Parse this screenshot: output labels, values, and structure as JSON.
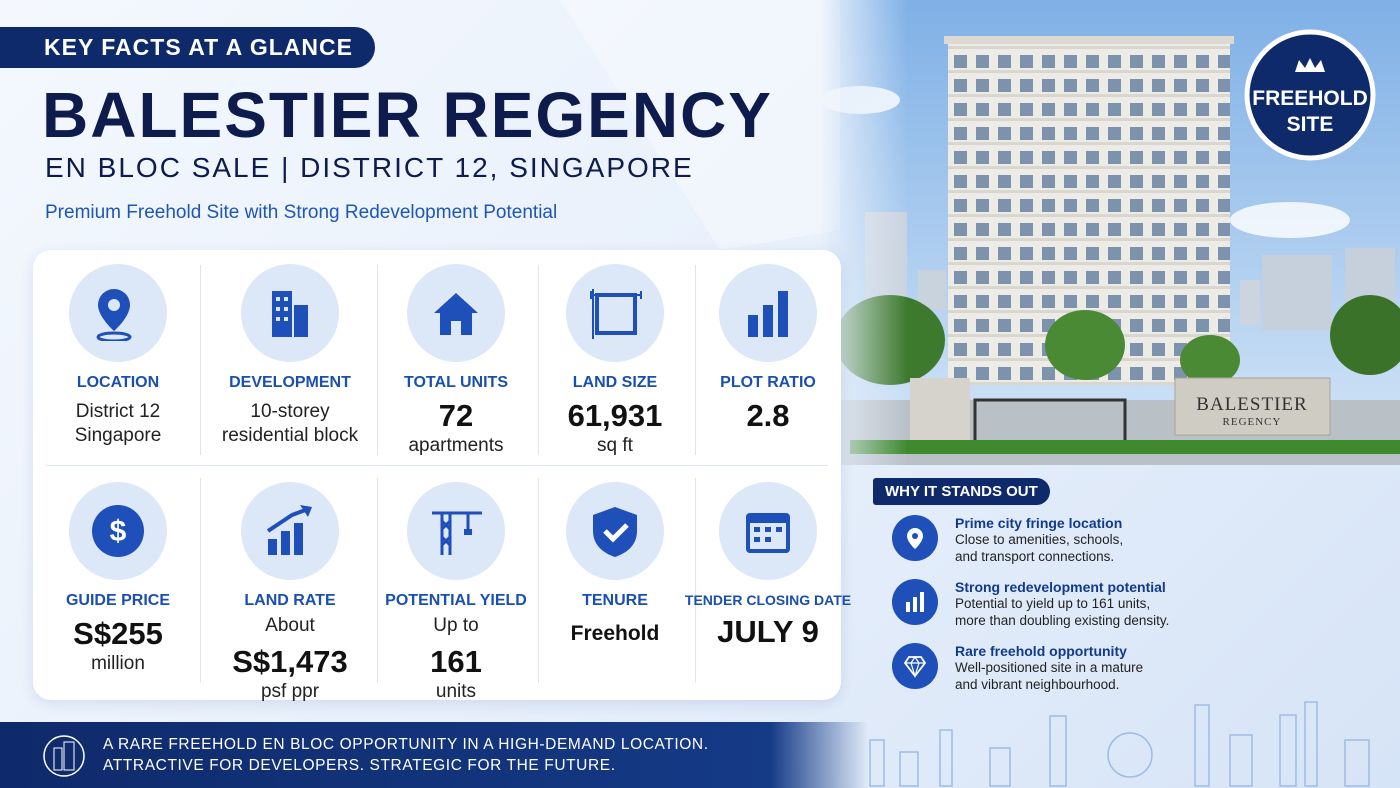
{
  "header": {
    "tag": "KEY FACTS AT A GLANCE",
    "title": "BALESTIER REGENCY",
    "subtitle": "EN BLOC SALE | DISTRICT 12, SINGAPORE",
    "tagline": "Premium Freehold Site with Strong Redevelopment Potential"
  },
  "badge": [
    "FREEHOLD",
    "SITE"
  ],
  "sign": [
    "BALESTIER",
    "REGENCY"
  ],
  "facts": [
    {
      "label": "LOCATION",
      "below": [
        "District 12",
        "Singapore"
      ]
    },
    {
      "label": "DEVELOPMENT",
      "below": [
        "10-storey",
        "residential block"
      ]
    },
    {
      "label": "TOTAL UNITS",
      "value": "72",
      "below": [
        "apartments"
      ]
    },
    {
      "label": "LAND SIZE",
      "value": "61,931",
      "below": [
        "sq ft"
      ]
    },
    {
      "label": "PLOT RATIO",
      "value": "2.8"
    },
    {
      "label": "GUIDE PRICE",
      "value": "S$255",
      "below": [
        "million"
      ]
    },
    {
      "label": "LAND RATE",
      "above": "About",
      "value": "S$1,473",
      "below": [
        "psf ppr"
      ]
    },
    {
      "label": "POTENTIAL YIELD",
      "above": "Up to",
      "value": "161",
      "below": [
        "units"
      ]
    },
    {
      "label": "TENURE",
      "value": "Freehold"
    },
    {
      "label": "TENDER CLOSING DATE",
      "value": "JULY 9"
    }
  ],
  "why": {
    "title": "WHY IT STANDS OUT",
    "items": [
      {
        "title": "Prime city fringe location",
        "lines": [
          "Close to amenities, schools,",
          "and transport connections."
        ]
      },
      {
        "title": "Strong redevelopment potential",
        "lines": [
          "Potential to yield up to 161 units,",
          "more than doubling existing density."
        ]
      },
      {
        "title": "Rare freehold opportunity",
        "lines": [
          "Well-positioned site in a mature",
          "and vibrant neighbourhood."
        ]
      }
    ]
  },
  "footer": [
    "A RARE FREEHOLD EN BLOC OPPORTUNITY IN A HIGH-DEMAND LOCATION.",
    "ATTRACTIVE FOR DEVELOPERS. STRATEGIC FOR THE FUTURE."
  ]
}
